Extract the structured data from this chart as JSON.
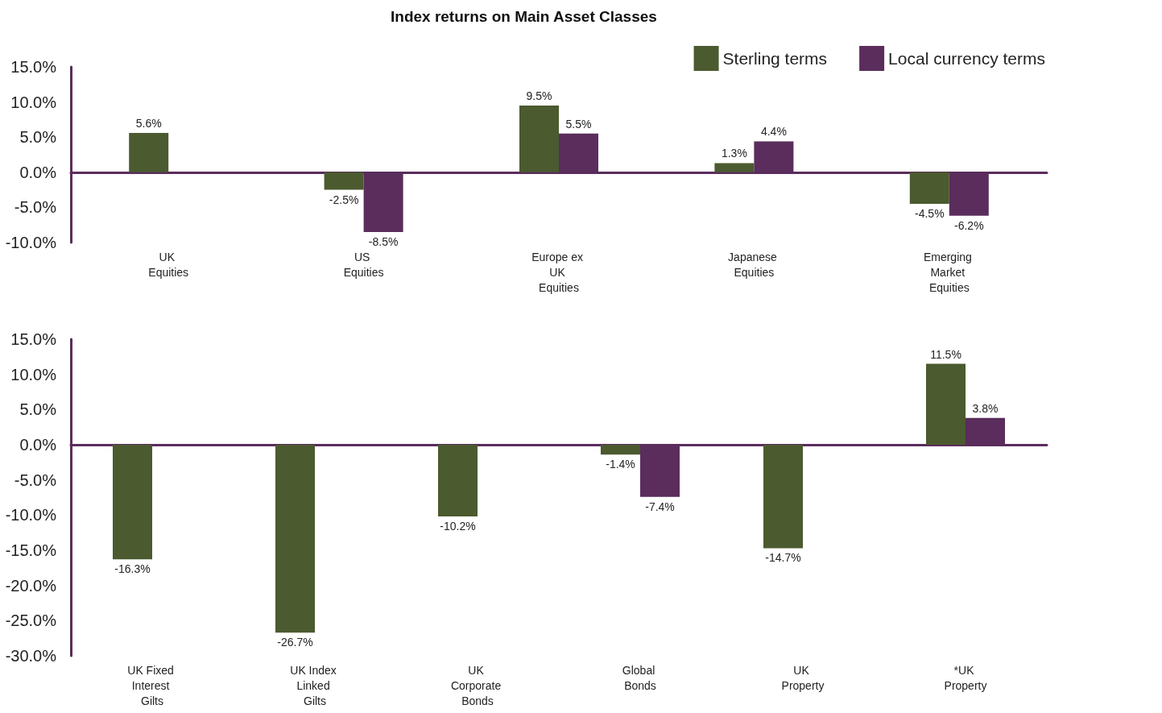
{
  "chart_data": [
    {
      "type": "bar",
      "title": "Index returns on Main Asset Classes",
      "categories": [
        "UK Equities",
        "US Equities",
        "Europe ex UK Equities",
        "Japanese Equities",
        "Emerging Market Equities"
      ],
      "series": [
        {
          "name": "Sterling terms",
          "color": "#4b5a2f",
          "values": [
            5.6,
            -2.5,
            9.5,
            1.3,
            -4.5
          ],
          "value_labels": [
            "5.6%",
            "-2.5%",
            "9.5%",
            "1.3%",
            "-4.5%"
          ]
        },
        {
          "name": "Local currency terms",
          "color": "#5a2d5c",
          "values": [
            null,
            -8.5,
            5.5,
            4.4,
            -6.2
          ],
          "value_labels": [
            null,
            "-8.5%",
            "5.5%",
            "4.4%",
            "-6.2%"
          ]
        }
      ],
      "ylim": [
        -10,
        15
      ],
      "yticks": [
        {
          "value": -10,
          "label": "-10.0%"
        },
        {
          "value": -5,
          "label": "-5.0%"
        },
        {
          "value": 0,
          "label": "0.0%"
        },
        {
          "value": 5,
          "label": "5.0%"
        },
        {
          "value": 10,
          "label": "10.0%"
        },
        {
          "value": 15,
          "label": "15.0%"
        }
      ],
      "grid": false,
      "legend": "top right"
    },
    {
      "type": "bar",
      "categories": [
        "UK Fixed Interest Gilts",
        "UK Index Linked Gilts",
        "UK Corporate Bonds",
        "Global Bonds",
        "UK Property",
        "*UK Property"
      ],
      "series": [
        {
          "color": "#4b5a2f",
          "values": [
            -16.3,
            -26.7,
            -10.2,
            -1.4,
            -14.7,
            11.5
          ],
          "value_labels": [
            "-16.3%",
            "-26.7%",
            "-10.2%",
            "-1.4%",
            "-14.7%",
            "11.5%"
          ]
        },
        {
          "color": "#5a2d5c",
          "values": [
            null,
            null,
            null,
            -7.4,
            null,
            3.8
          ],
          "value_labels": [
            null,
            null,
            null,
            "-7.4%",
            null,
            "3.8%"
          ]
        }
      ],
      "ylim": [
        -30,
        15
      ],
      "yticks": [
        {
          "value": -30,
          "label": "-30.0%"
        },
        {
          "value": -25,
          "label": "-25.0%"
        },
        {
          "value": -20,
          "label": "-20.0%"
        },
        {
          "value": -15,
          "label": "-15.0%"
        },
        {
          "value": -10,
          "label": "-10.0%"
        },
        {
          "value": -5,
          "label": "-5.0%"
        },
        {
          "value": 0,
          "label": "0.0%"
        },
        {
          "value": 5,
          "label": "5.0%"
        },
        {
          "value": 10,
          "label": "10.0%"
        },
        {
          "value": 15,
          "label": "15.0%"
        }
      ],
      "grid": false,
      "legend": false
    }
  ]
}
